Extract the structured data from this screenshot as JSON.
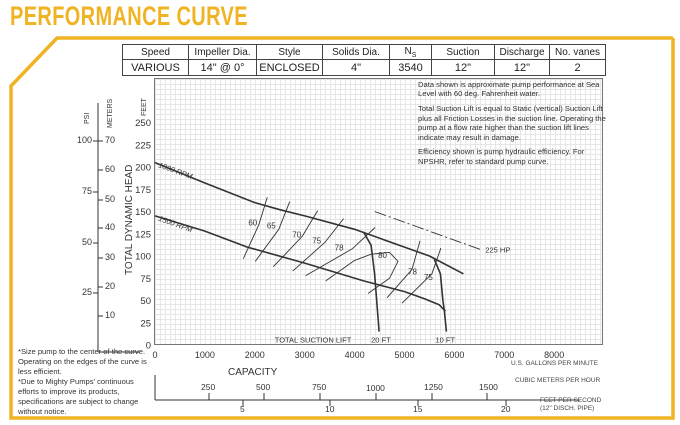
{
  "title": "PERFORMANCE CURVE",
  "colors": {
    "accent": "#F0B323",
    "curve": "#333333",
    "grid": "#e6e6e6"
  },
  "spec_table": {
    "headers": [
      "Speed",
      "Impeller Dia.",
      "Style",
      "Solids Dia.",
      "N",
      "Suction",
      "Discharge",
      "No. vanes"
    ],
    "ns_subscript": "S",
    "values": [
      "VARIOUS",
      "14\" @ 0°",
      "ENCLOSED",
      "4\"",
      "3540",
      "12\"",
      "12\"",
      "2"
    ]
  },
  "notes": [
    "Data shown is approximate pump performance at Sea Level with 60 deg. Fahrenheit water.",
    "Total Suction Lift is equal to Static (vertical) Suction Lift plus all Friction Losses in the suction line. Operating the pump at a flow rate higher than the suction lift lines indicate may result in damage.",
    "Efficiency shown is pump hydraulic efficiency. For NPSHR, refer to standard pump curve."
  ],
  "footnotes": [
    "*Size pump to the center of the curve. Operating on the edges of the curve is less efficient.",
    "*Due to Mighty Pumps' continuous efforts to improve its products, specifications are subject to change without notice."
  ],
  "left_axes": {
    "psi_label": "PSI",
    "meters_label": "METERS",
    "psi_ticks": [
      "100",
      "75",
      "50",
      "25"
    ],
    "meter_ticks": [
      "70",
      "60",
      "50",
      "40",
      "30",
      "20",
      "10"
    ]
  },
  "bottom_axes": {
    "capacity_label": "CAPACITY",
    "gpm_label": "U.S. GALLONS PER MINUTE",
    "m3h_label": "CUBIC METERS PER HOUR",
    "m3h_ticks": [
      "250",
      "500",
      "750",
      "1000",
      "1250",
      "1500"
    ],
    "fps_label": "FEET PER SECOND",
    "fps_sublabel": "(12\" DISCH. PIPE)",
    "fps_ticks": [
      "5",
      "10",
      "15",
      "20"
    ]
  },
  "chart_data": {
    "type": "line",
    "title": "PERFORMANCE CURVE",
    "xlabel": "U.S. GALLONS PER MINUTE",
    "ylabel": "TOTAL DYNAMIC HEAD",
    "yunit": "FEET",
    "xlim": [
      0,
      9000
    ],
    "ylim": [
      0,
      300
    ],
    "grid": true,
    "x_ticks": [
      "0",
      "1000",
      "2000",
      "3000",
      "4000",
      "5000",
      "6000",
      "7000",
      "8000"
    ],
    "x_tick_values": [
      0,
      1000,
      2000,
      3000,
      4000,
      5000,
      6000,
      7000,
      8000
    ],
    "y_ticks": [
      "0",
      "25",
      "50",
      "75",
      "100",
      "125",
      "150",
      "175",
      "200",
      "225",
      "250"
    ],
    "y_tick_values": [
      0,
      25,
      50,
      75,
      100,
      125,
      150,
      175,
      200,
      225,
      250
    ],
    "series": [
      {
        "name": "1800 RPM",
        "kind": "head",
        "points": [
          [
            0,
            205
          ],
          [
            1000,
            182
          ],
          [
            2000,
            160
          ],
          [
            2500,
            152
          ],
          [
            3000,
            145
          ],
          [
            4000,
            130
          ],
          [
            5000,
            110
          ],
          [
            5500,
            100
          ],
          [
            6180,
            80
          ]
        ],
        "label_at": [
          60,
          200
        ]
      },
      {
        "name": "1500 RPM",
        "kind": "head",
        "points": [
          [
            0,
            145
          ],
          [
            1000,
            128
          ],
          [
            1850,
            110
          ],
          [
            3000,
            92
          ],
          [
            4180,
            72
          ],
          [
            5000,
            60
          ],
          [
            5400,
            52
          ],
          [
            5700,
            45
          ],
          [
            5820,
            38
          ]
        ],
        "label_at": [
          60,
          140
        ]
      },
      {
        "name": "20 FT",
        "kind": "suction",
        "points": [
          [
            4180,
            127
          ],
          [
            4330,
            112
          ],
          [
            4400,
            80
          ],
          [
            4490,
            15
          ]
        ],
        "label_at": [
          4330,
          3
        ]
      },
      {
        "name": "10 FT",
        "kind": "suction",
        "points": [
          [
            5600,
            96
          ],
          [
            5720,
            80
          ],
          [
            5770,
            50
          ],
          [
            5800,
            38
          ],
          [
            5840,
            15
          ]
        ],
        "label_at": [
          5620,
          3
        ]
      },
      {
        "name": "225 HP",
        "kind": "power",
        "points": [
          [
            4400,
            150
          ],
          [
            6540,
            107
          ]
        ],
        "label_at": [
          6620,
          104
        ]
      }
    ],
    "efficiency": [
      {
        "name": "60",
        "points": [
          [
            2250,
            166
          ],
          [
            2080,
            135
          ],
          [
            1770,
            97
          ]
        ],
        "label_at": [
          1960,
          134
        ]
      },
      {
        "name": "65",
        "points": [
          [
            2700,
            161
          ],
          [
            2480,
            130
          ],
          [
            2010,
            94
          ]
        ],
        "label_at": [
          2330,
          131
        ]
      },
      {
        "name": "70",
        "points": [
          [
            3260,
            151
          ],
          [
            2950,
            122
          ],
          [
            2370,
            88
          ]
        ],
        "label_at": [
          2840,
          121
        ]
      },
      {
        "name": "75",
        "points": [
          [
            3780,
            142
          ],
          [
            3400,
            115
          ],
          [
            2760,
            83
          ]
        ],
        "label_at": [
          3240,
          114
        ]
      },
      {
        "name": "78",
        "points": [
          [
            4410,
            132
          ],
          [
            3950,
            108
          ],
          [
            3020,
            78
          ]
        ],
        "label_at": [
          3690,
          106
        ]
      },
      {
        "name": "80",
        "points": [
          [
            3420,
            72
          ],
          [
            4000,
            95
          ],
          [
            4330,
            102
          ],
          [
            4700,
            104
          ],
          [
            4870,
            94
          ],
          [
            4700,
            75
          ],
          [
            4270,
            58
          ]
        ],
        "label_at": [
          4560,
          98
        ]
      },
      {
        "name": "78",
        "points": [
          [
            5310,
            117
          ],
          [
            5150,
            85
          ],
          [
            4650,
            53
          ]
        ],
        "label_at": [
          5160,
          79
        ]
      },
      {
        "name": "75",
        "points": [
          [
            5730,
            109
          ],
          [
            5550,
            80
          ],
          [
            4950,
            47
          ]
        ],
        "label_at": [
          5480,
          73
        ]
      }
    ],
    "annotations": [
      "TOTAL SUCTION LIFT"
    ],
    "annotation_at": [
      [
        2400,
        3
      ]
    ]
  }
}
